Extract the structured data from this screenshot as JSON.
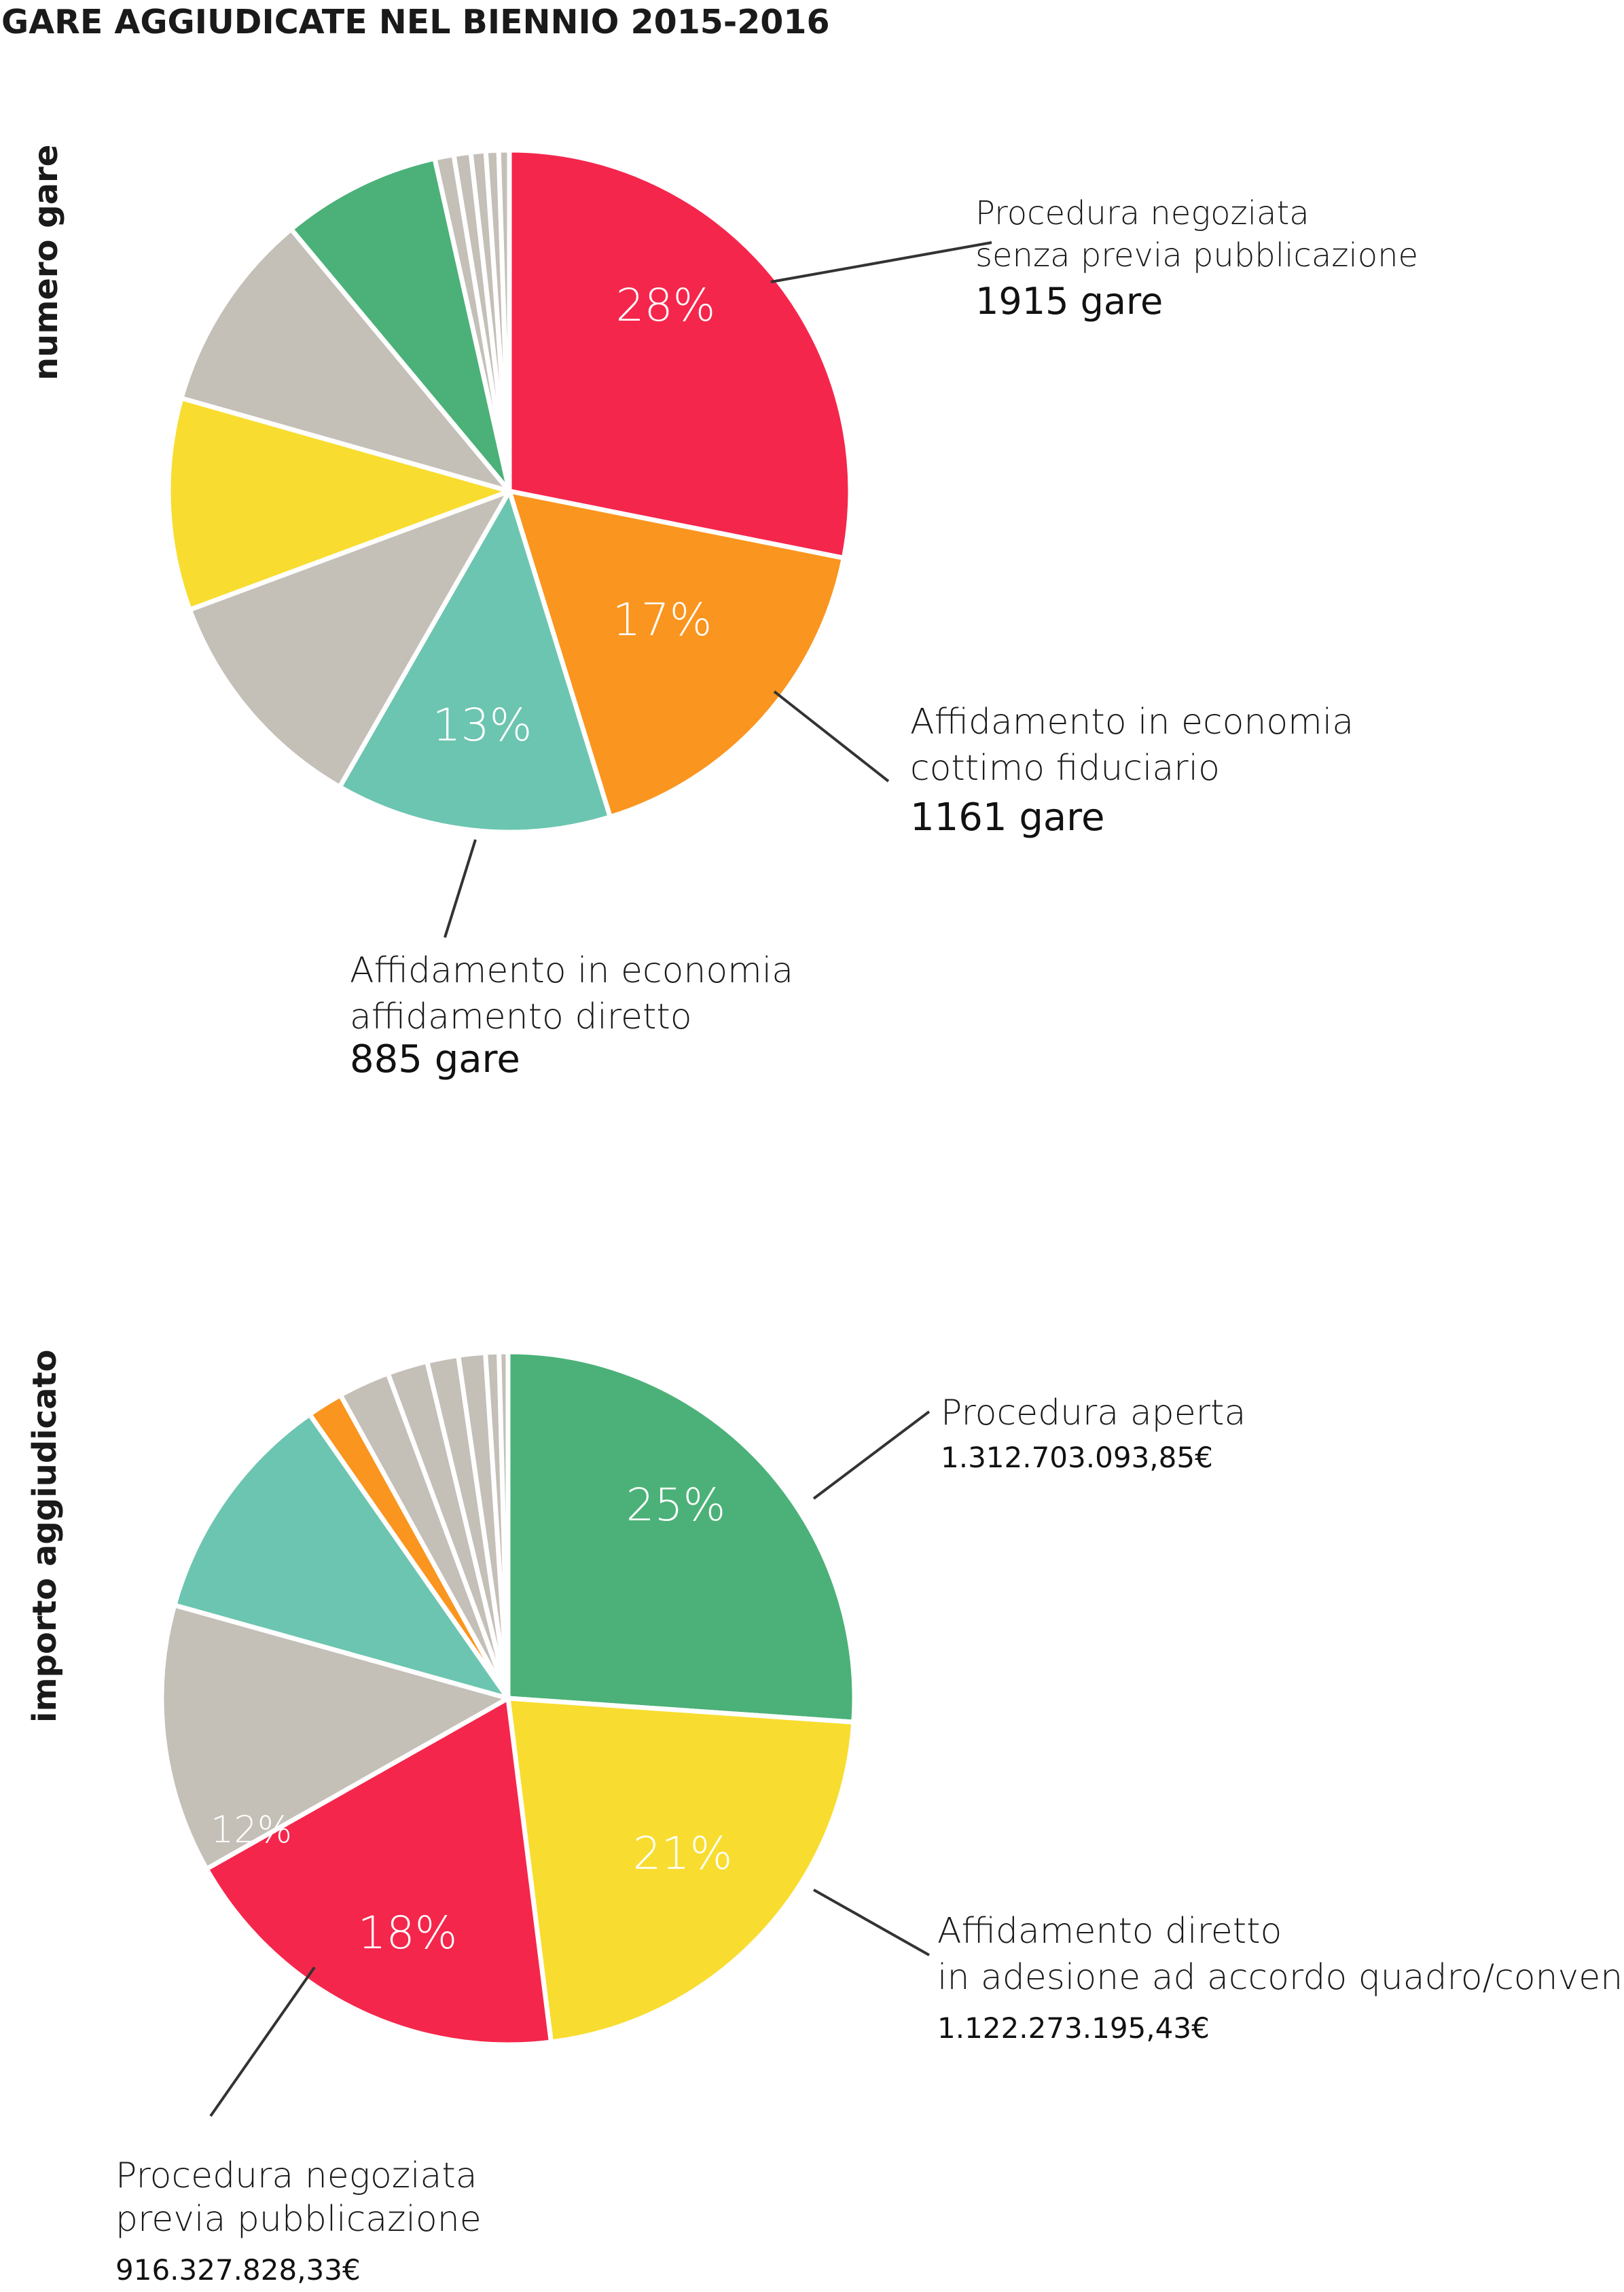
{
  "title": "GARE AGGIUDICATE NEL BIENNIO 2015-2016",
  "colors": {
    "red": "#f5264c",
    "orange": "#fa951f",
    "teal": "#6cc5b0",
    "gray": "#c4bfb7",
    "yellow": "#f8dd30",
    "green": "#4bb178",
    "leader": "#333333"
  },
  "chart_data": [
    {
      "type": "pie",
      "ylabel": "numero gare",
      "slices": [
        {
          "value": 28,
          "color": "red",
          "pct_label": "28%",
          "label": [
            "Procedura negoziata",
            "senza previa pubblicazione"
          ],
          "value_label": "1915 gare"
        },
        {
          "value": 17,
          "color": "orange",
          "pct_label": "17%",
          "label": [
            "Affidamento in economia",
            "cottimo fiduciario"
          ],
          "value_label": "1161 gare"
        },
        {
          "value": 13,
          "color": "teal",
          "pct_label": "13%",
          "label": [
            "Affidamento in economia",
            "affidamento diretto"
          ],
          "value_label": "885 gare"
        },
        {
          "value": 11,
          "color": "gray"
        },
        {
          "value": 10,
          "color": "yellow"
        },
        {
          "value": 9.5,
          "color": "gray"
        },
        {
          "value": 7.5,
          "color": "green"
        },
        {
          "value": 0.9,
          "color": "gray"
        },
        {
          "value": 0.8,
          "color": "gray"
        },
        {
          "value": 0.7,
          "color": "gray"
        },
        {
          "value": 0.6,
          "color": "gray"
        },
        {
          "value": 0.5,
          "color": "gray"
        }
      ]
    },
    {
      "type": "pie",
      "ylabel": "importo aggiudicato",
      "slices": [
        {
          "value": 25,
          "color": "green",
          "pct_label": "25%",
          "label": [
            "Procedura aperta"
          ],
          "value_label": "1.312.703.093,85€"
        },
        {
          "value": 21,
          "color": "yellow",
          "pct_label": "21%",
          "label": [
            "Affidamento diretto",
            "in adesione ad accordo quadro/convenzione"
          ],
          "value_label": "1.122.273.195,43€"
        },
        {
          "value": 18,
          "color": "red",
          "pct_label": "18%",
          "label": [
            "Procedura negoziata",
            "previa pubblicazione"
          ],
          "value_label": "916.327.828,33€"
        },
        {
          "value": 12,
          "color": "gray",
          "pct_label": "12%"
        },
        {
          "value": 10.5,
          "color": "teal"
        },
        {
          "value": 1.6,
          "color": "orange"
        },
        {
          "value": 2.3,
          "color": "gray"
        },
        {
          "value": 1.8,
          "color": "gray"
        },
        {
          "value": 1.4,
          "color": "gray"
        },
        {
          "value": 1.2,
          "color": "gray"
        },
        {
          "value": 0.6,
          "color": "gray"
        },
        {
          "value": 0.4,
          "color": "gray"
        }
      ]
    }
  ]
}
